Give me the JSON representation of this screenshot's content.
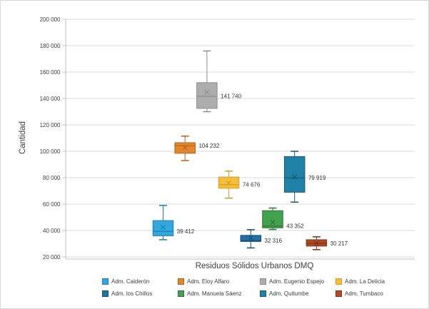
{
  "chart_data": {
    "type": "boxplot",
    "title": "",
    "xlabel": "Residuos Sólidos Urbanos DMQ",
    "ylabel": "Cantidad",
    "category": "Residuos Sólidos Urbanos DMQ",
    "grid": true,
    "legend_position": "bottom",
    "y_axis": {
      "min": 20000,
      "max": 200000,
      "step": 20000
    },
    "y_tick_labels": [
      "200 000",
      "180 000",
      "160 000",
      "140 000",
      "120 000",
      "100 000",
      "80 000",
      "60 000",
      "40 000",
      "20 000"
    ],
    "colors": {
      "gridline": "#d9d9d9",
      "axis": "#bfbfbf",
      "tick_text": "#404040",
      "label_text": "#333333"
    },
    "series": [
      {
        "name": "Adm. Calderón",
        "fill": "#35a7dc",
        "stroke": "#1581b4",
        "low": 33000,
        "q1": 36000,
        "median": 39412,
        "q3": 47500,
        "high": 59000,
        "mean": 42500,
        "data_label": "39 412"
      },
      {
        "name": "Adm. Eloy Alfaro",
        "fill": "#e0862f",
        "stroke": "#b96018",
        "low": 93000,
        "q1": 98500,
        "median": 104232,
        "q3": 106500,
        "high": 111500,
        "mean": 102800,
        "data_label": "104 232"
      },
      {
        "name": "Adm. Eugenio Espejo",
        "fill": "#adadad",
        "stroke": "#8c8c8c",
        "low": 130000,
        "q1": 132500,
        "median": 141740,
        "q3": 152000,
        "high": 176000,
        "mean": 144800,
        "data_label": "141 740"
      },
      {
        "name": "Adm. La Delicia",
        "fill": "#f3be3a",
        "stroke": "#d99b21",
        "low": 64500,
        "q1": 72000,
        "median": 74676,
        "q3": 80500,
        "high": 85000,
        "mean": 76000,
        "data_label": "74 676"
      },
      {
        "name": "Adm. los Chillos",
        "fill": "#2170a8",
        "stroke": "#174e74",
        "low": 26800,
        "q1": 31700,
        "median": 32316,
        "q3": 36300,
        "high": 40600,
        "mean": 34400,
        "data_label": "32 316"
      },
      {
        "name": "Adm. Manuela Sáenz",
        "fill": "#43a24d",
        "stroke": "#2e7136",
        "low": 40800,
        "q1": 42000,
        "median": 43352,
        "q3": 55000,
        "high": 57000,
        "mean": 46200,
        "data_label": "43 352"
      },
      {
        "name": "Adm. Quitumbe",
        "fill": "#1f81a6",
        "stroke": "#155a74",
        "low": 61500,
        "q1": 69000,
        "median": 79919,
        "q3": 96000,
        "high": 100000,
        "mean": 80500,
        "data_label": "79 919"
      },
      {
        "name": "Adm. Tumbaco",
        "fill": "#b04a22",
        "stroke": "#7c3316",
        "low": 25500,
        "q1": 28200,
        "median": 30217,
        "q3": 33000,
        "high": 35200,
        "mean": 30400,
        "data_label": "30 217"
      }
    ]
  }
}
